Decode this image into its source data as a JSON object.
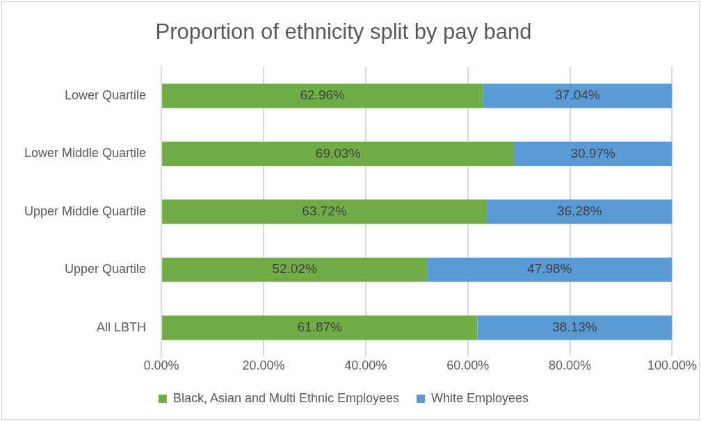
{
  "chart_data": {
    "type": "bar",
    "orientation": "horizontal",
    "stacked": true,
    "title": "Proportion of ethnicity split by pay band",
    "categories": [
      "Lower Quartile",
      "Lower Middle Quartile",
      "Upper Middle Quartile",
      "Upper Quartile",
      "All LBTH"
    ],
    "series": [
      {
        "name": "Black, Asian and Multi Ethnic Employees",
        "color": "#70ad47",
        "values": [
          62.96,
          69.03,
          63.72,
          52.02,
          61.87
        ],
        "value_labels": [
          "62.96%",
          "69.03%",
          "63.72%",
          "52.02%",
          "61.87%"
        ]
      },
      {
        "name": "White Employees",
        "color": "#5b9bd5",
        "values": [
          37.04,
          30.97,
          36.28,
          47.98,
          38.13
        ],
        "value_labels": [
          "37.04%",
          "30.97%",
          "36.28%",
          "47.98%",
          "38.13%"
        ]
      }
    ],
    "xlim": [
      0,
      100
    ],
    "xticks": [
      {
        "value": 0,
        "label": "0.00%"
      },
      {
        "value": 20,
        "label": "20.00%"
      },
      {
        "value": 40,
        "label": "40.00%"
      },
      {
        "value": 60,
        "label": "60.00%"
      },
      {
        "value": 80,
        "label": "80.00%"
      },
      {
        "value": 100,
        "label": "100.00%"
      }
    ],
    "grid": "x",
    "legend": "bottom"
  }
}
